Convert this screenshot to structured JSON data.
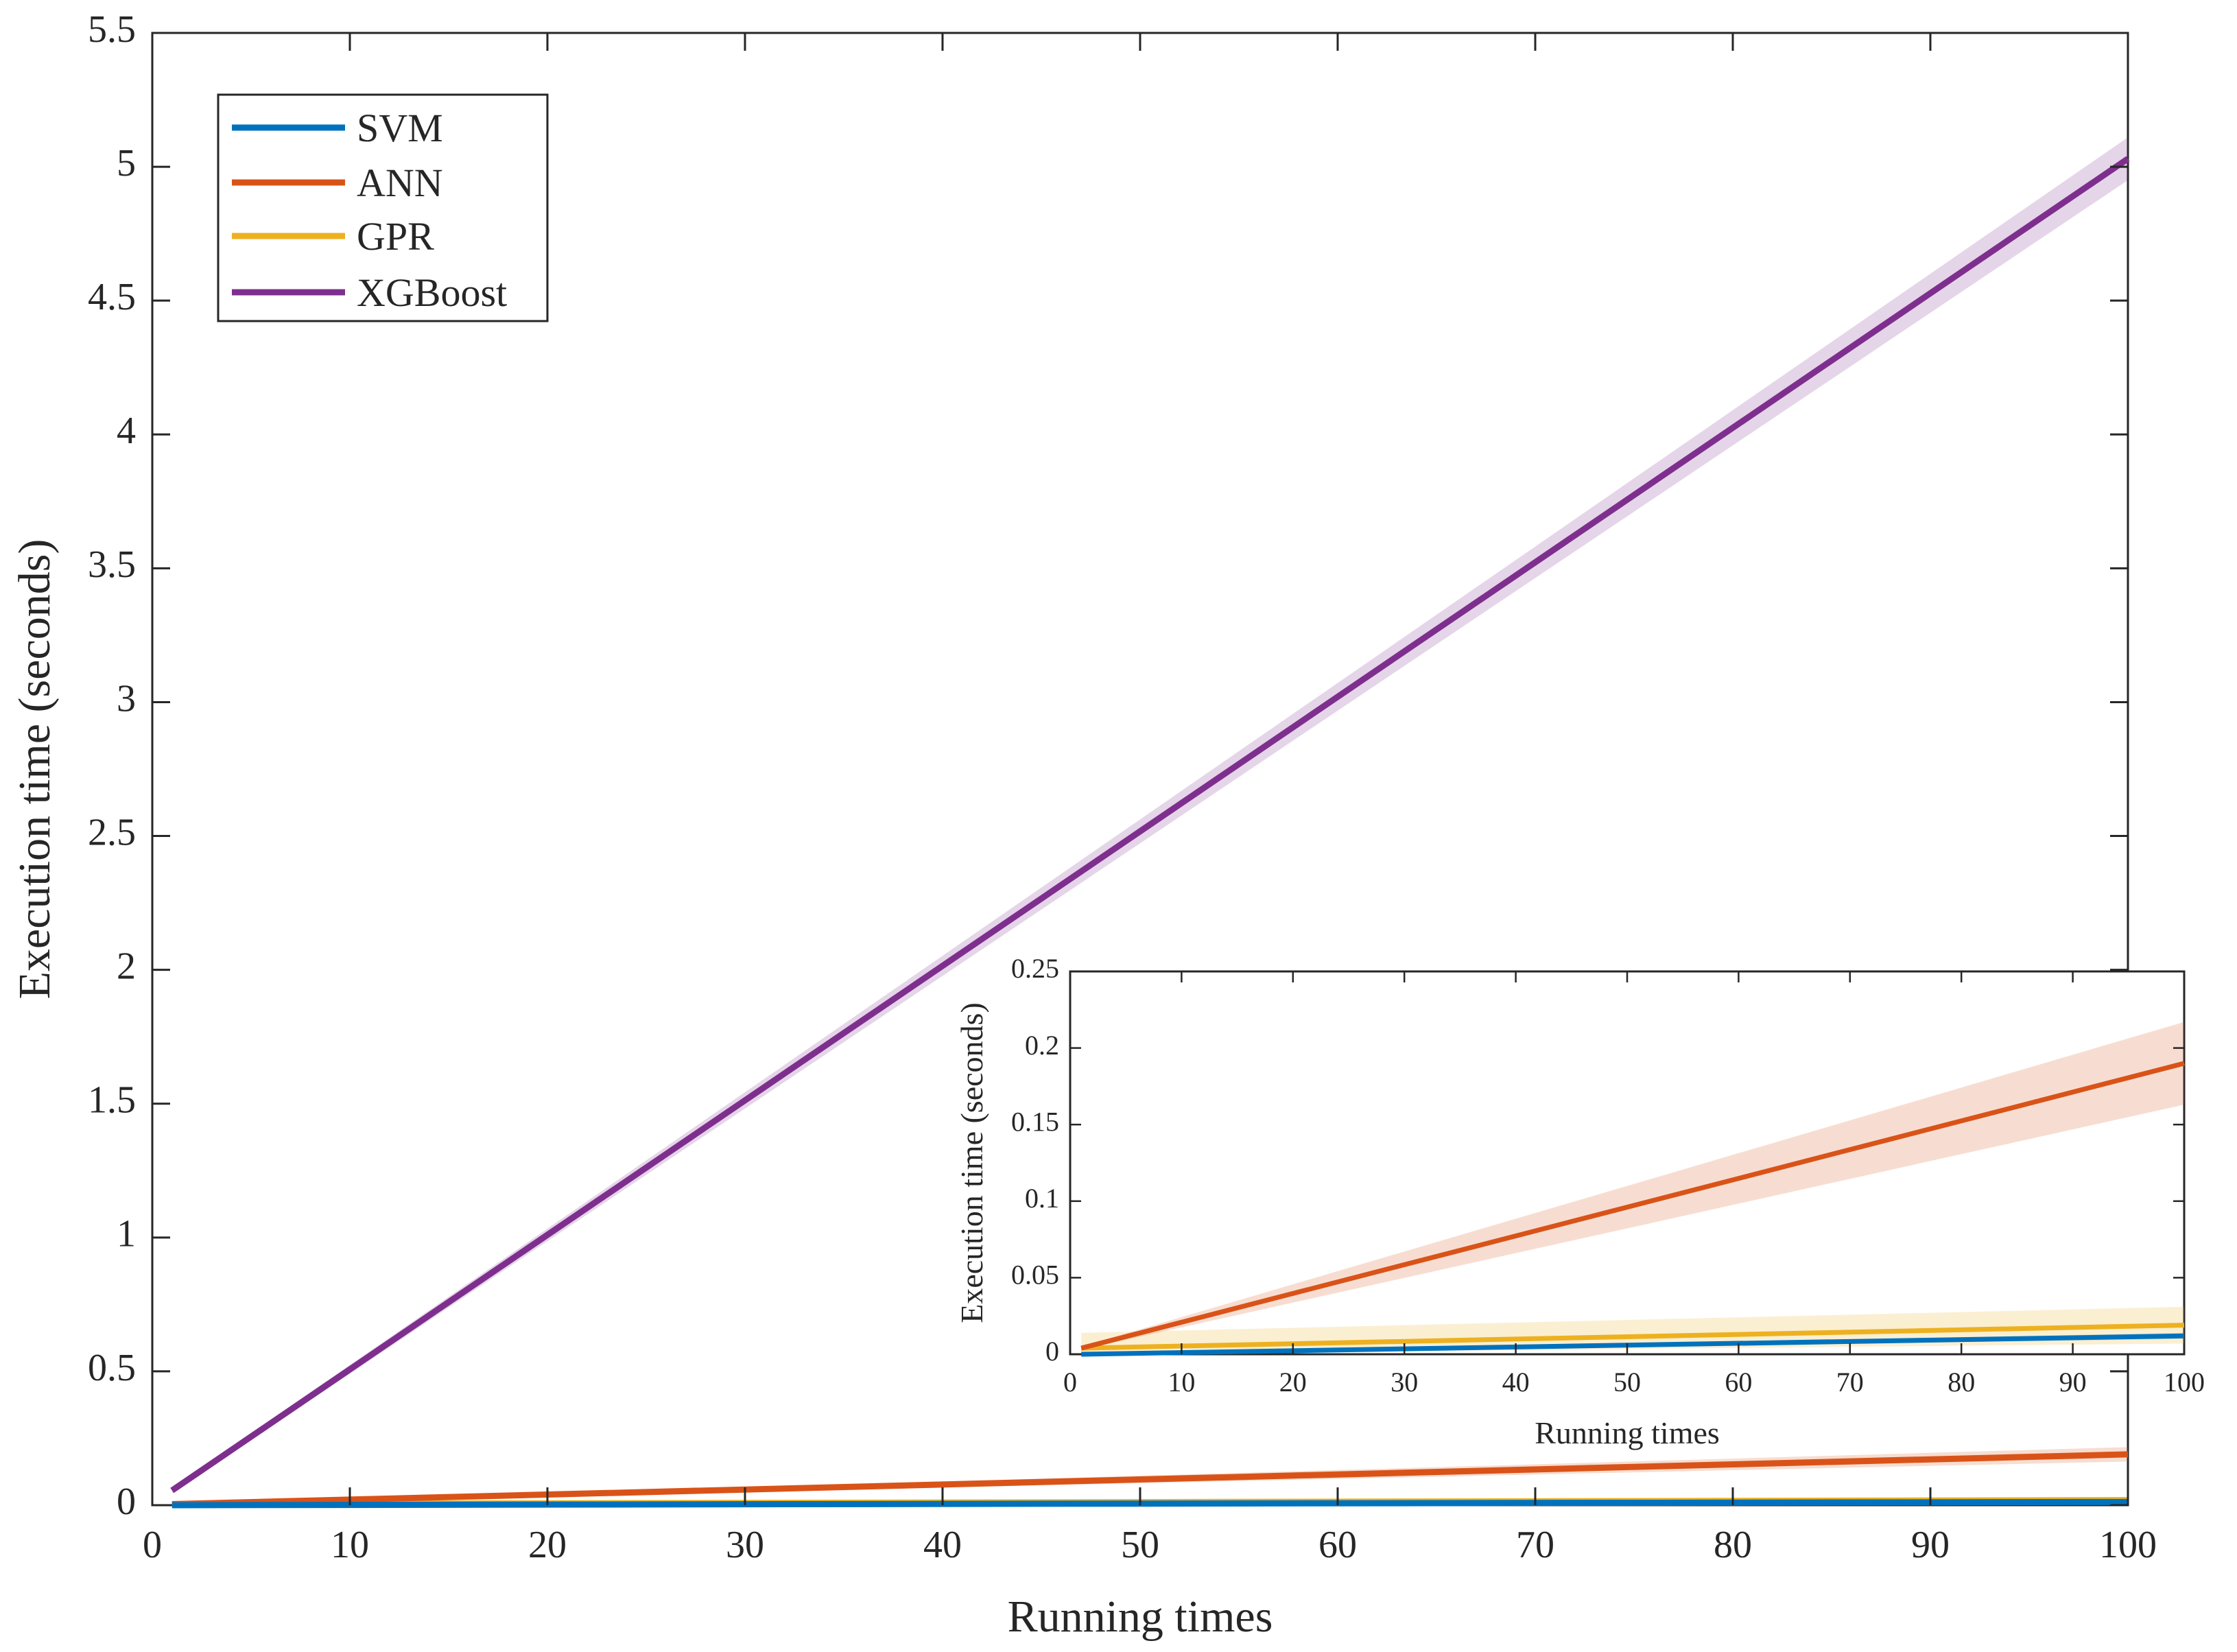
{
  "chart_data": [
    {
      "id": "main",
      "type": "line",
      "title": "",
      "xlabel": "Running times",
      "ylabel": "Execution time (seconds)",
      "xlim": [
        0,
        100
      ],
      "ylim": [
        0,
        5.5
      ],
      "xticks": [
        0,
        10,
        20,
        30,
        40,
        50,
        60,
        70,
        80,
        90,
        100
      ],
      "yticks": [
        0,
        0.5,
        1,
        1.5,
        2,
        2.5,
        3,
        3.5,
        4,
        4.5,
        5,
        5.5
      ],
      "ytick_labels": [
        "0",
        "0.5",
        "1",
        "1.5",
        "2",
        "2.5",
        "3",
        "3.5",
        "4",
        "4.5",
        "5",
        "5.5"
      ],
      "grid": false,
      "legend": {
        "placement": "top-left",
        "entries": [
          "SVM",
          "ANN",
          "GPR",
          "XGBoost"
        ]
      },
      "series": [
        {
          "name": "SVM",
          "color": "#0072BD",
          "x": [
            1,
            100
          ],
          "y": [
            0.0,
            0.012
          ],
          "band": [
            0.0,
            0.002
          ]
        },
        {
          "name": "ANN",
          "color": "#D95319",
          "x": [
            1,
            100
          ],
          "y": [
            0.004,
            0.19
          ],
          "band": [
            0.001,
            0.027
          ]
        },
        {
          "name": "GPR",
          "color": "#EDB120",
          "x": [
            1,
            100
          ],
          "y": [
            0.004,
            0.019
          ],
          "band": [
            0.01,
            0.012
          ]
        },
        {
          "name": "XGBoost",
          "color": "#7E2F8E",
          "x": [
            1,
            100
          ],
          "y": [
            0.055,
            5.03
          ],
          "band": [
            0.01,
            0.08
          ]
        }
      ]
    },
    {
      "id": "inset",
      "type": "line",
      "title": "",
      "xlabel": "Running times",
      "ylabel": "Execution time (seconds)",
      "xlim": [
        0,
        100
      ],
      "ylim": [
        0,
        0.25
      ],
      "xticks": [
        0,
        10,
        20,
        30,
        40,
        50,
        60,
        70,
        80,
        90,
        100
      ],
      "yticks": [
        0,
        0.05,
        0.1,
        0.15,
        0.2,
        0.25
      ],
      "ytick_labels": [
        "0",
        "0.05",
        "0.1",
        "0.15",
        "0.2",
        "0.25"
      ],
      "grid": false,
      "series": [
        {
          "name": "SVM",
          "color": "#0072BD",
          "x": [
            1,
            100
          ],
          "y": [
            0.0,
            0.012
          ],
          "band": [
            0.0,
            0.002
          ]
        },
        {
          "name": "ANN",
          "color": "#D95319",
          "x": [
            1,
            100
          ],
          "y": [
            0.004,
            0.19
          ],
          "band": [
            0.001,
            0.027
          ]
        },
        {
          "name": "GPR",
          "color": "#EDB120",
          "x": [
            1,
            100
          ],
          "y": [
            0.004,
            0.019
          ],
          "band": [
            0.01,
            0.012
          ]
        }
      ]
    }
  ]
}
